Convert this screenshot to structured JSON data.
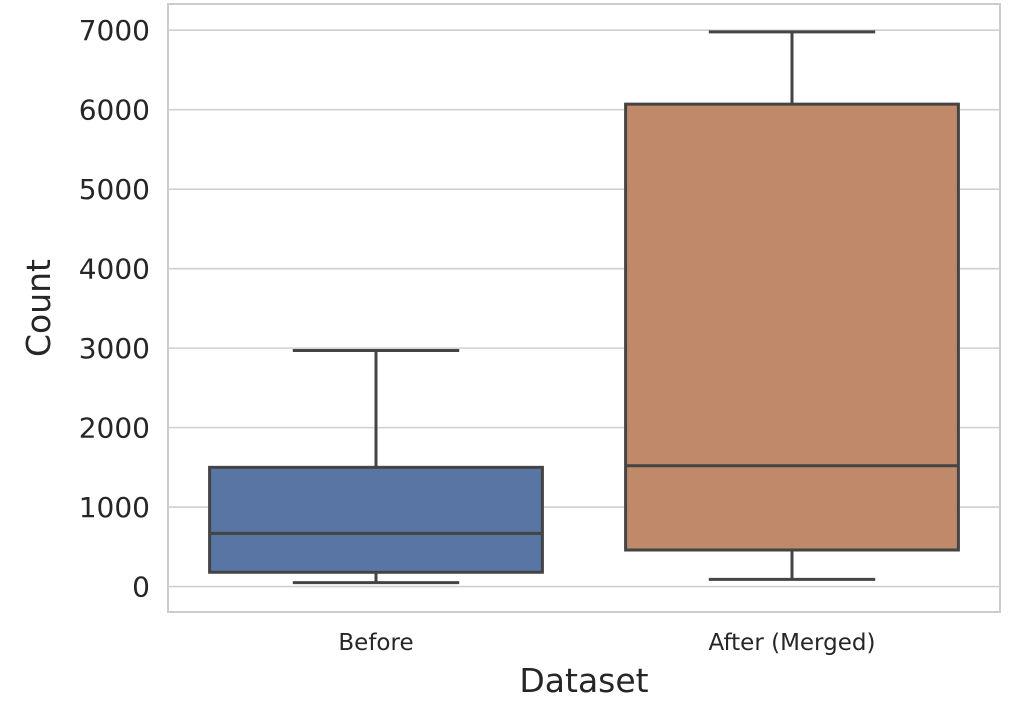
{
  "chart_data": {
    "type": "box",
    "title": "",
    "xlabel": "Dataset",
    "ylabel": "Count",
    "categories": [
      "Before",
      "After (Merged)"
    ],
    "boxes": [
      {
        "category": "Before",
        "whisker_low": 50,
        "q1": 180,
        "median": 670,
        "q3": 1500,
        "whisker_high": 2970,
        "color": "#5975a4"
      },
      {
        "category": "After (Merged)",
        "whisker_low": 90,
        "q1": 460,
        "median": 1520,
        "q3": 6070,
        "whisker_high": 6980,
        "color": "#c0896a"
      }
    ],
    "ylim": [
      -320,
      7330
    ],
    "yticks": [
      0,
      1000,
      2000,
      3000,
      4000,
      5000,
      6000,
      7000
    ],
    "grid": true,
    "style": {
      "grid_color": "#d0d0d0",
      "frame_color": "#cccccc",
      "line_color": "#444444",
      "text_color": "#262626"
    }
  }
}
